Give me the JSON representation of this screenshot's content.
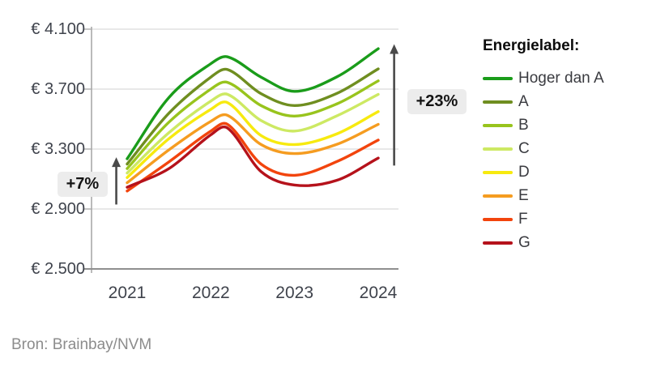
{
  "figure": {
    "source": "Bron: Brainbay/NVM"
  },
  "legend": {
    "title": "Energielabel:"
  },
  "axes": {
    "y_ticks": [
      {
        "value": 4100,
        "label": "€ 4.100"
      },
      {
        "value": 3700,
        "label": "€ 3.700"
      },
      {
        "value": 3300,
        "label": "€ 3.300"
      },
      {
        "value": 2900,
        "label": "€ 2.900"
      },
      {
        "value": 2500,
        "label": "€ 2.500"
      }
    ],
    "x_ticks": [
      {
        "value": 2021,
        "label": "2021"
      },
      {
        "value": 2022,
        "label": "2022"
      },
      {
        "value": 2023,
        "label": "2023"
      },
      {
        "value": 2024,
        "label": "2024"
      }
    ]
  },
  "chart_data": {
    "type": "line",
    "title": "",
    "xlabel": "",
    "ylabel": "",
    "ylim": [
      2500,
      4120
    ],
    "xlim": [
      2020.85,
      2024.25
    ],
    "grid": "horizontal",
    "legend_position": "right",
    "legend_title": "Energielabel:",
    "x": [
      2021,
      2021.5,
      2022,
      2022.2,
      2022.6,
      2023,
      2023.5,
      2024
    ],
    "x_tick_labels": [
      "2021",
      "2022",
      "2023",
      "2024"
    ],
    "y_tick_labels": [
      "€ 2.500",
      "€ 2.900",
      "€ 3.300",
      "€ 3.700",
      "€ 4.100"
    ],
    "series": [
      {
        "name": "Hoger dan A",
        "color": "#1a9c1a",
        "values": [
          3235,
          3645,
          3870,
          3915,
          3780,
          3685,
          3780,
          3970
        ]
      },
      {
        "name": "A",
        "color": "#6f8e20",
        "values": [
          3200,
          3540,
          3780,
          3830,
          3670,
          3590,
          3670,
          3835
        ]
      },
      {
        "name": "B",
        "color": "#98c41d",
        "values": [
          3170,
          3480,
          3700,
          3745,
          3590,
          3520,
          3600,
          3755
        ]
      },
      {
        "name": "C",
        "color": "#cde963",
        "values": [
          3140,
          3410,
          3620,
          3665,
          3490,
          3420,
          3520,
          3665
        ]
      },
      {
        "name": "D",
        "color": "#f7ea0f",
        "values": [
          3110,
          3370,
          3565,
          3610,
          3390,
          3330,
          3400,
          3550
        ]
      },
      {
        "name": "E",
        "color": "#f59c20",
        "values": [
          3075,
          3295,
          3485,
          3525,
          3330,
          3270,
          3330,
          3465
        ]
      },
      {
        "name": "F",
        "color": "#f2440d",
        "values": [
          3020,
          3215,
          3420,
          3465,
          3200,
          3125,
          3215,
          3360
        ]
      },
      {
        "name": "G",
        "color": "#b5121b",
        "values": [
          3045,
          3170,
          3395,
          3440,
          3150,
          3060,
          3090,
          3240
        ]
      }
    ],
    "annotations": [
      {
        "text": "+7%",
        "x": 2020.87,
        "value_from": 2930,
        "value_to": 3245,
        "box_side": "left"
      },
      {
        "text": "+23%",
        "x": 2024.19,
        "value_from": 3190,
        "value_to": 4000,
        "box_side": "right"
      }
    ]
  }
}
